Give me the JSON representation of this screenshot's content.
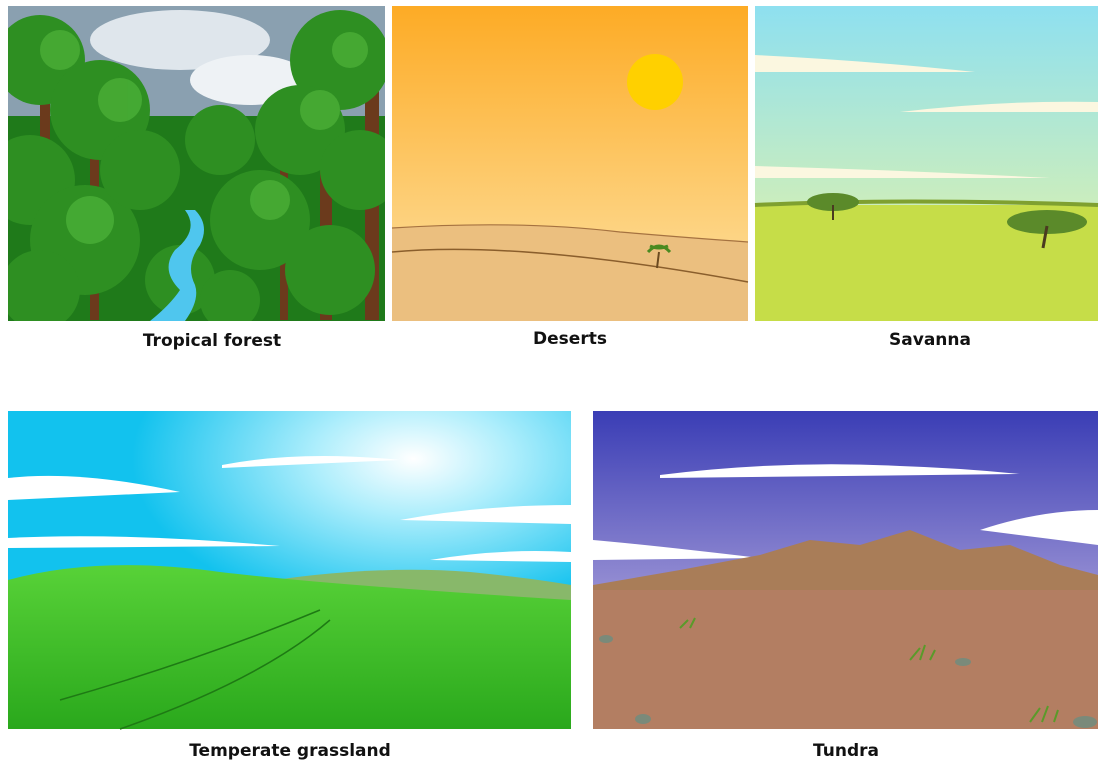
{
  "panels": [
    {
      "caption": "Tropical forest"
    },
    {
      "caption": "Deserts"
    },
    {
      "caption": "Savanna"
    },
    {
      "caption": "Temperate grassland"
    },
    {
      "caption": "Tundra"
    }
  ]
}
